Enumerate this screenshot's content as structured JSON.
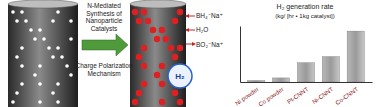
{
  "diagram": {
    "arrow_label": [
      "N-Mediated",
      "Synthesis of",
      "Nanoparticle",
      "Catalysts"
    ],
    "reactants": [
      "BH₄⁻Na⁺",
      "H₂O"
    ],
    "product": "BO₂⁻Na⁺",
    "gas": "H₂",
    "mechanism_label": [
      "Charge Polarization",
      "Mechanism"
    ]
  },
  "chart_data": {
    "type": "bar",
    "title": "H₂ generation rate",
    "subtitle": "(kg/ [hr • 1kg catalyst])",
    "categories": [
      "Ni powder",
      "Co powder",
      "Pt-CNNT",
      "Ni-CNNT",
      "Co-CNNT"
    ],
    "values": [
      0.3,
      0.8,
      3.8,
      5,
      10
    ],
    "color": "#9a9a9a",
    "ylim": [
      0,
      11
    ],
    "tick_labels": "x"
  }
}
